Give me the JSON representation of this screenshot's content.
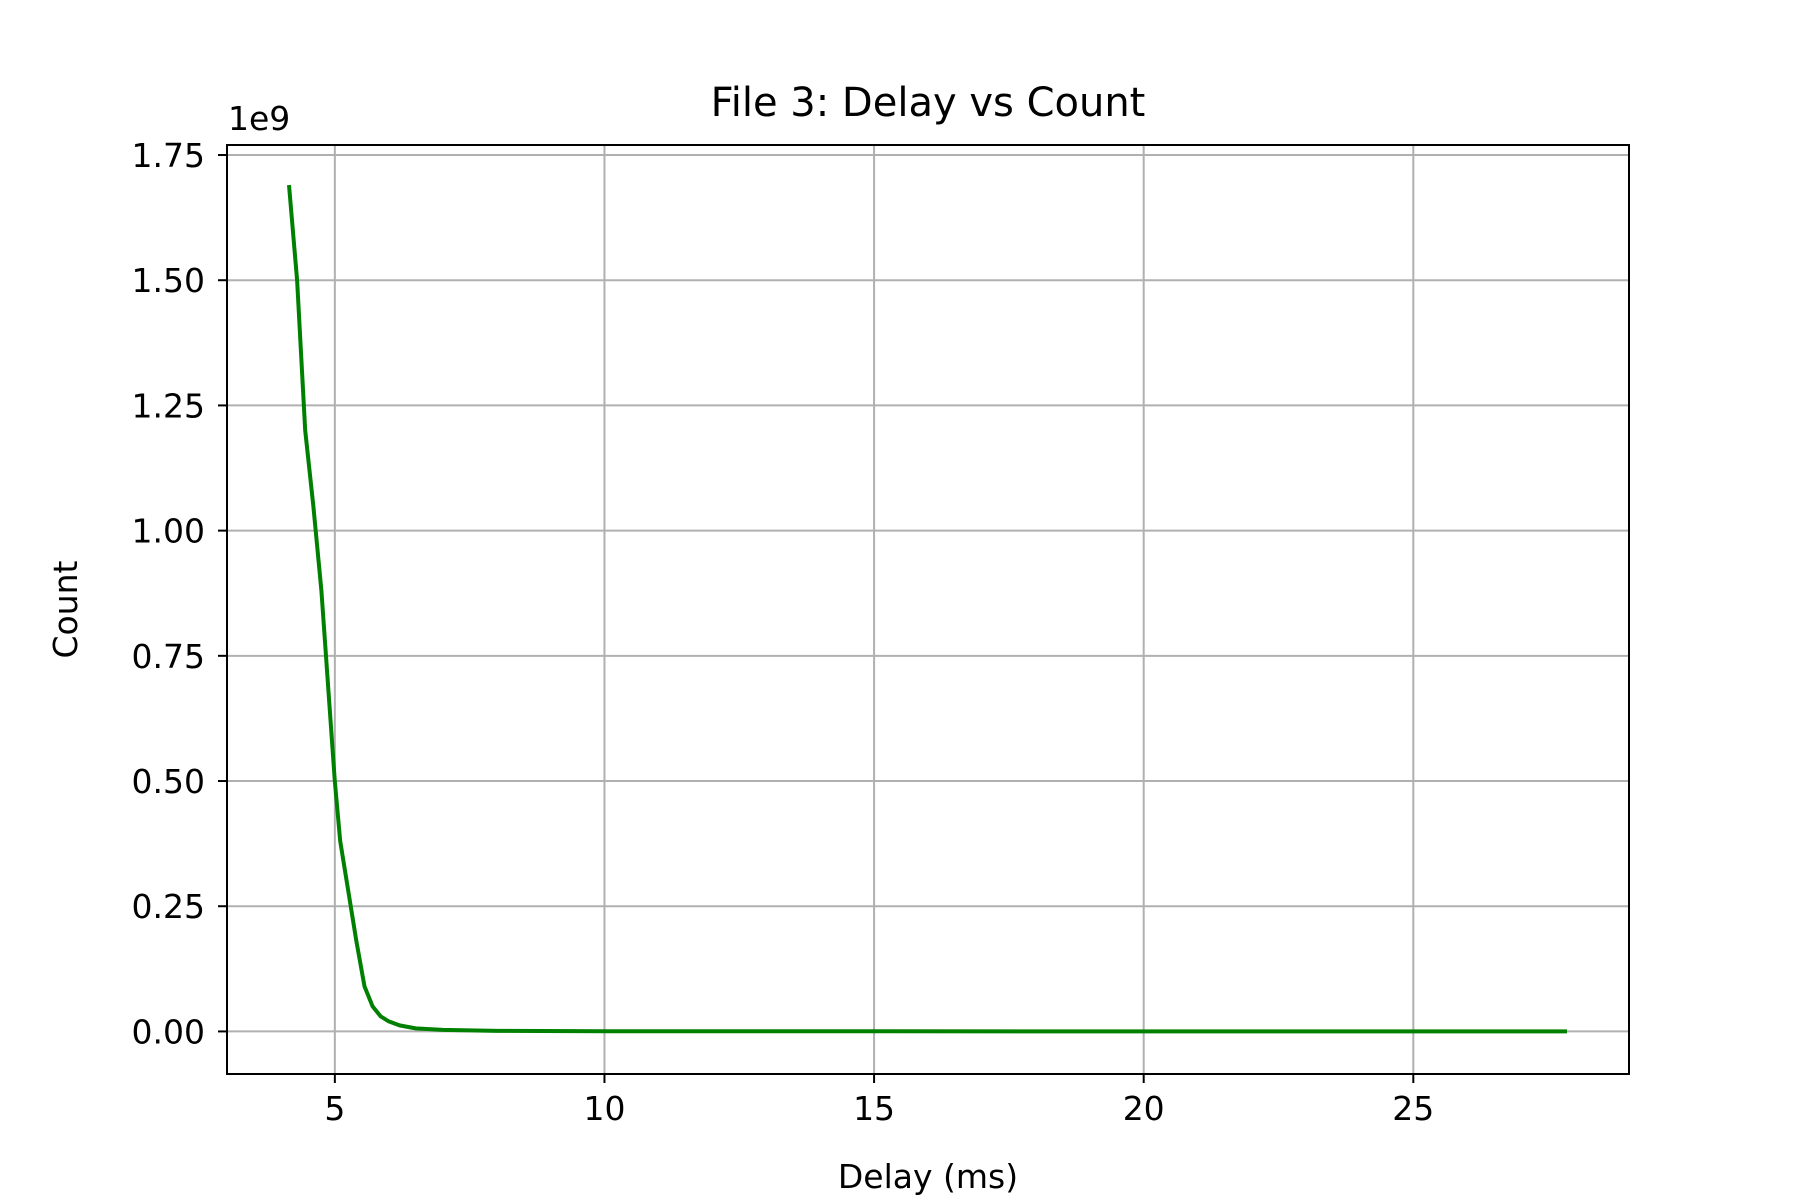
{
  "chart_data": {
    "type": "line",
    "title": "File 3: Delay vs Count",
    "xlabel": "Delay (ms)",
    "ylabel": "Count",
    "y_offset_label": "1e9",
    "xlim": [
      3,
      29
    ],
    "ylim": [
      -0.085,
      1.77
    ],
    "x_ticks": [
      5,
      10,
      15,
      20,
      25
    ],
    "x_tick_labels": [
      "5",
      "10",
      "15",
      "20",
      "25"
    ],
    "y_ticks": [
      0,
      0.25,
      0.5,
      0.75,
      1.0,
      1.25,
      1.5,
      1.75
    ],
    "y_tick_labels": [
      "0.00",
      "0.25",
      "0.50",
      "0.75",
      "1.00",
      "1.25",
      "1.50",
      "1.75"
    ],
    "grid": true,
    "series": [
      {
        "color": "#008000",
        "x": [
          4.15,
          4.3,
          4.45,
          4.6,
          4.75,
          4.9,
          5.0,
          5.1,
          5.25,
          5.4,
          5.55,
          5.7,
          5.85,
          6.0,
          6.2,
          6.5,
          7.0,
          8.0,
          10.0,
          15.0,
          20.0,
          25.0,
          27.85
        ],
        "y": [
          1.69,
          1.5,
          1.2,
          1.05,
          0.88,
          0.65,
          0.5,
          0.38,
          0.28,
          0.18,
          0.09,
          0.05,
          0.03,
          0.02,
          0.012,
          0.006,
          0.003,
          0.001,
          0.0005,
          0.0002,
          0.0001,
          0.0001,
          0.0001
        ]
      }
    ]
  }
}
